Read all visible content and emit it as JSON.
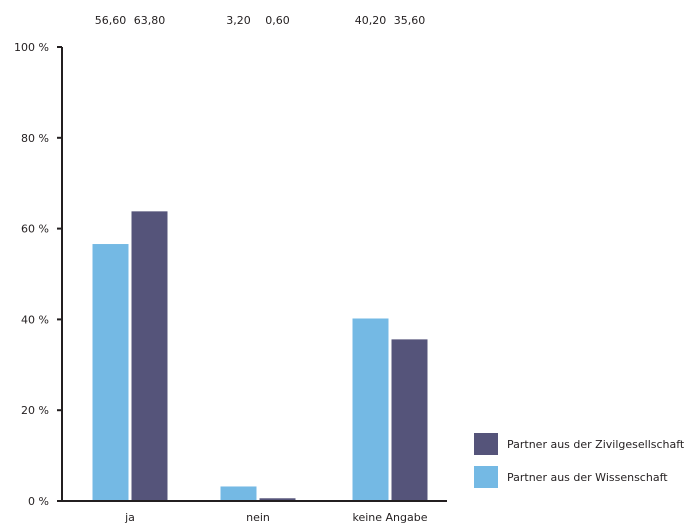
{
  "chart_data": {
    "type": "bar",
    "categories": [
      "ja",
      "nein",
      "keine Angabe"
    ],
    "series": [
      {
        "name": "Partner aus der Wissenschaft",
        "values": [
          56.6,
          3.2,
          40.2
        ],
        "value_labels": [
          "56,60",
          "3,20",
          "40,20"
        ],
        "color": "#74b9e4"
      },
      {
        "name": "Partner aus der Zivilgesellschaft",
        "values": [
          63.8,
          0.6,
          35.6
        ],
        "value_labels": [
          "63,80",
          "0,60",
          "35,60"
        ],
        "color": "#55547a"
      }
    ],
    "ylim": [
      0,
      100
    ],
    "yticks": [
      0,
      20,
      40,
      60,
      80,
      100
    ],
    "ytick_labels": [
      "0 %",
      "20 %",
      "40 %",
      "60 %",
      "80 %",
      "100 %"
    ],
    "legend_position": "bottom-right",
    "legend_order": [
      1,
      0
    ],
    "grid": false
  }
}
